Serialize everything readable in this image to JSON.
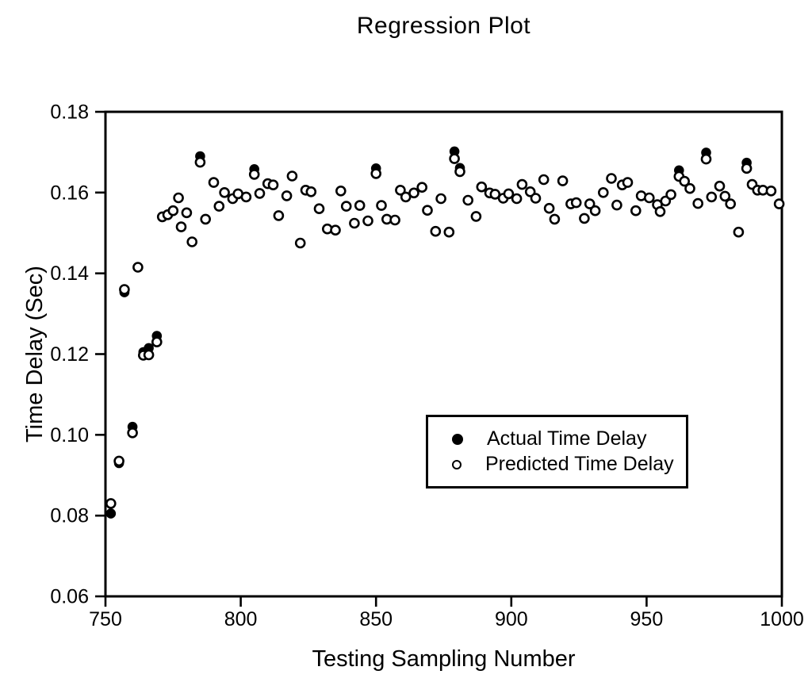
{
  "chart_data": {
    "type": "scatter",
    "title": "Regression Plot",
    "xlabel": "Testing Sampling Number",
    "ylabel": "Time Delay (Sec)",
    "xlim": [
      750,
      1000
    ],
    "ylim": [
      0.06,
      0.18
    ],
    "grid": false,
    "legend_position": "inside-center-right",
    "colors": {
      "foreground": "#000000",
      "background": "#ffffff"
    },
    "x_ticks": [
      {
        "v": 750,
        "label": "750"
      },
      {
        "v": 800,
        "label": "800"
      },
      {
        "v": 850,
        "label": "850"
      },
      {
        "v": 900,
        "label": "900"
      },
      {
        "v": 950,
        "label": "950"
      },
      {
        "v": 1000,
        "label": "1000"
      }
    ],
    "y_ticks": [
      {
        "v": 0.18,
        "label": "0.18"
      },
      {
        "v": 0.16,
        "label": "0.16"
      },
      {
        "v": 0.14,
        "label": "0.14"
      },
      {
        "v": 0.12,
        "label": "0.12"
      },
      {
        "v": 0.1,
        "label": "0.10"
      },
      {
        "v": 0.08,
        "label": "0.08"
      },
      {
        "v": 0.06,
        "label": "0.06"
      }
    ],
    "x": [
      752,
      755,
      757,
      760,
      762,
      764,
      766,
      769,
      771,
      773,
      775,
      777,
      778,
      780,
      782,
      785,
      787,
      790,
      792,
      794,
      797,
      799,
      802,
      805,
      807,
      810,
      812,
      814,
      817,
      819,
      822,
      824,
      826,
      829,
      832,
      835,
      837,
      839,
      842,
      844,
      847,
      850,
      852,
      854,
      857,
      859,
      861,
      864,
      867,
      869,
      872,
      874,
      877,
      879,
      881,
      884,
      887,
      889,
      892,
      894,
      897,
      899,
      902,
      904,
      907,
      909,
      912,
      914,
      916,
      919,
      922,
      924,
      927,
      929,
      931,
      934,
      937,
      939,
      941,
      943,
      946,
      948,
      951,
      954,
      955,
      957,
      959,
      962,
      964,
      966,
      969,
      972,
      974,
      977,
      979,
      981,
      984,
      987,
      989,
      991,
      993,
      996,
      999
    ],
    "series": [
      {
        "name": "Actual Time Delay",
        "marker": "filled-circle",
        "color": "#000000",
        "values": [
          0.0805,
          0.093,
          0.1353,
          0.102,
          0.1415,
          0.1205,
          0.1215,
          0.1245,
          0.154,
          0.1545,
          0.1555,
          0.1587,
          0.1515,
          0.155,
          0.1478,
          0.169,
          0.1534,
          0.1625,
          0.1566,
          0.16,
          0.1585,
          0.1597,
          0.1589,
          0.1658,
          0.1598,
          0.1622,
          0.1619,
          0.1543,
          0.1592,
          0.1641,
          0.1475,
          0.1606,
          0.1602,
          0.156,
          0.151,
          0.1507,
          0.1604,
          0.1566,
          0.1524,
          0.1568,
          0.153,
          0.166,
          0.1568,
          0.1534,
          0.1532,
          0.1606,
          0.1589,
          0.1599,
          0.1613,
          0.1556,
          0.1504,
          0.1585,
          0.1502,
          0.1702,
          0.1661,
          0.1581,
          0.1541,
          0.1614,
          0.1599,
          0.1596,
          0.1586,
          0.1597,
          0.1585,
          0.162,
          0.1602,
          0.1586,
          0.1632,
          0.1561,
          0.1534,
          0.1629,
          0.1572,
          0.1575,
          0.1536,
          0.1572,
          0.1555,
          0.16,
          0.1635,
          0.1569,
          0.1619,
          0.1625,
          0.1555,
          0.1592,
          0.1587,
          0.157,
          0.1553,
          0.1579,
          0.1595,
          0.1655,
          0.1628,
          0.161,
          0.1573,
          0.1699,
          0.1589,
          0.1616,
          0.1591,
          0.1572,
          0.1502,
          0.1674,
          0.162,
          0.1606,
          0.1606,
          0.1604,
          0.1572
        ]
      },
      {
        "name": "Predicted Time Delay",
        "marker": "open-circle",
        "color": "#000000",
        "values": [
          0.083,
          0.0935,
          0.136,
          0.1005,
          0.1415,
          0.1197,
          0.1198,
          0.123,
          0.154,
          0.1545,
          0.1555,
          0.1587,
          0.1515,
          0.155,
          0.1478,
          0.1675,
          0.1534,
          0.1625,
          0.1566,
          0.16,
          0.1585,
          0.1597,
          0.1589,
          0.1645,
          0.1598,
          0.1622,
          0.1619,
          0.1543,
          0.1592,
          0.1641,
          0.1475,
          0.1606,
          0.1602,
          0.156,
          0.151,
          0.1507,
          0.1604,
          0.1566,
          0.1524,
          0.1568,
          0.153,
          0.1647,
          0.1568,
          0.1534,
          0.1532,
          0.1606,
          0.1589,
          0.1599,
          0.1613,
          0.1556,
          0.1504,
          0.1585,
          0.1502,
          0.1684,
          0.1652,
          0.1581,
          0.1541,
          0.1614,
          0.1599,
          0.1596,
          0.1586,
          0.1597,
          0.1585,
          0.162,
          0.1602,
          0.1586,
          0.1632,
          0.1561,
          0.1534,
          0.1629,
          0.1572,
          0.1575,
          0.1536,
          0.1572,
          0.1555,
          0.16,
          0.1635,
          0.1569,
          0.1619,
          0.1625,
          0.1555,
          0.1592,
          0.1587,
          0.157,
          0.1553,
          0.1579,
          0.1595,
          0.164,
          0.1628,
          0.161,
          0.1573,
          0.1683,
          0.1589,
          0.1616,
          0.1591,
          0.1572,
          0.1502,
          0.166,
          0.162,
          0.1606,
          0.1606,
          0.1604,
          0.1572
        ]
      }
    ]
  }
}
